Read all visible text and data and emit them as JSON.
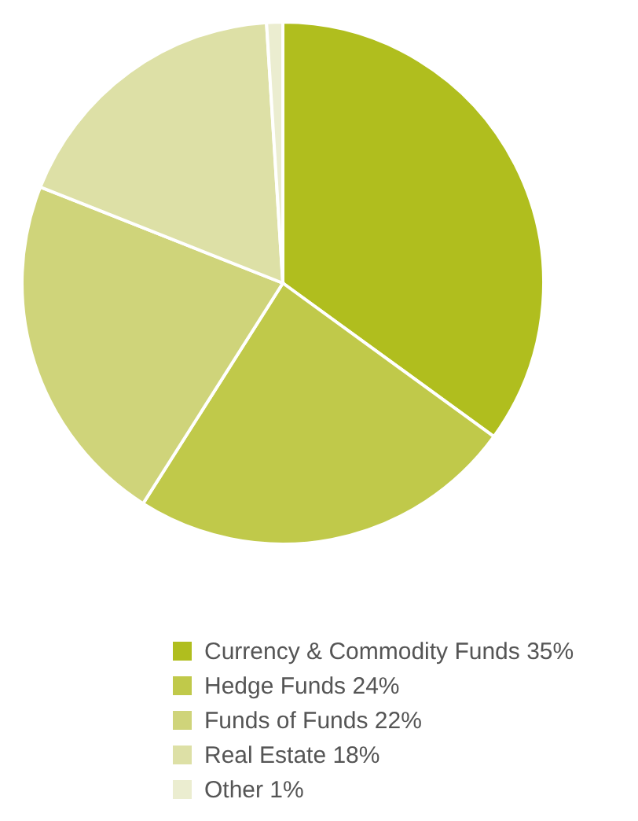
{
  "chart_data": {
    "type": "pie",
    "categories": [
      "Currency & Commodity Funds",
      "Hedge Funds",
      "Funds of Funds",
      "Real Estate",
      "Other"
    ],
    "values": [
      35,
      24,
      22,
      18,
      1
    ],
    "value_labels": [
      "35%",
      "24%",
      "22%",
      "18%",
      "1%"
    ],
    "colors": [
      "#b0be1e",
      "#c0c94a",
      "#cfd47a",
      "#dde0a6",
      "#ebedd0"
    ],
    "legend": "bottom"
  }
}
